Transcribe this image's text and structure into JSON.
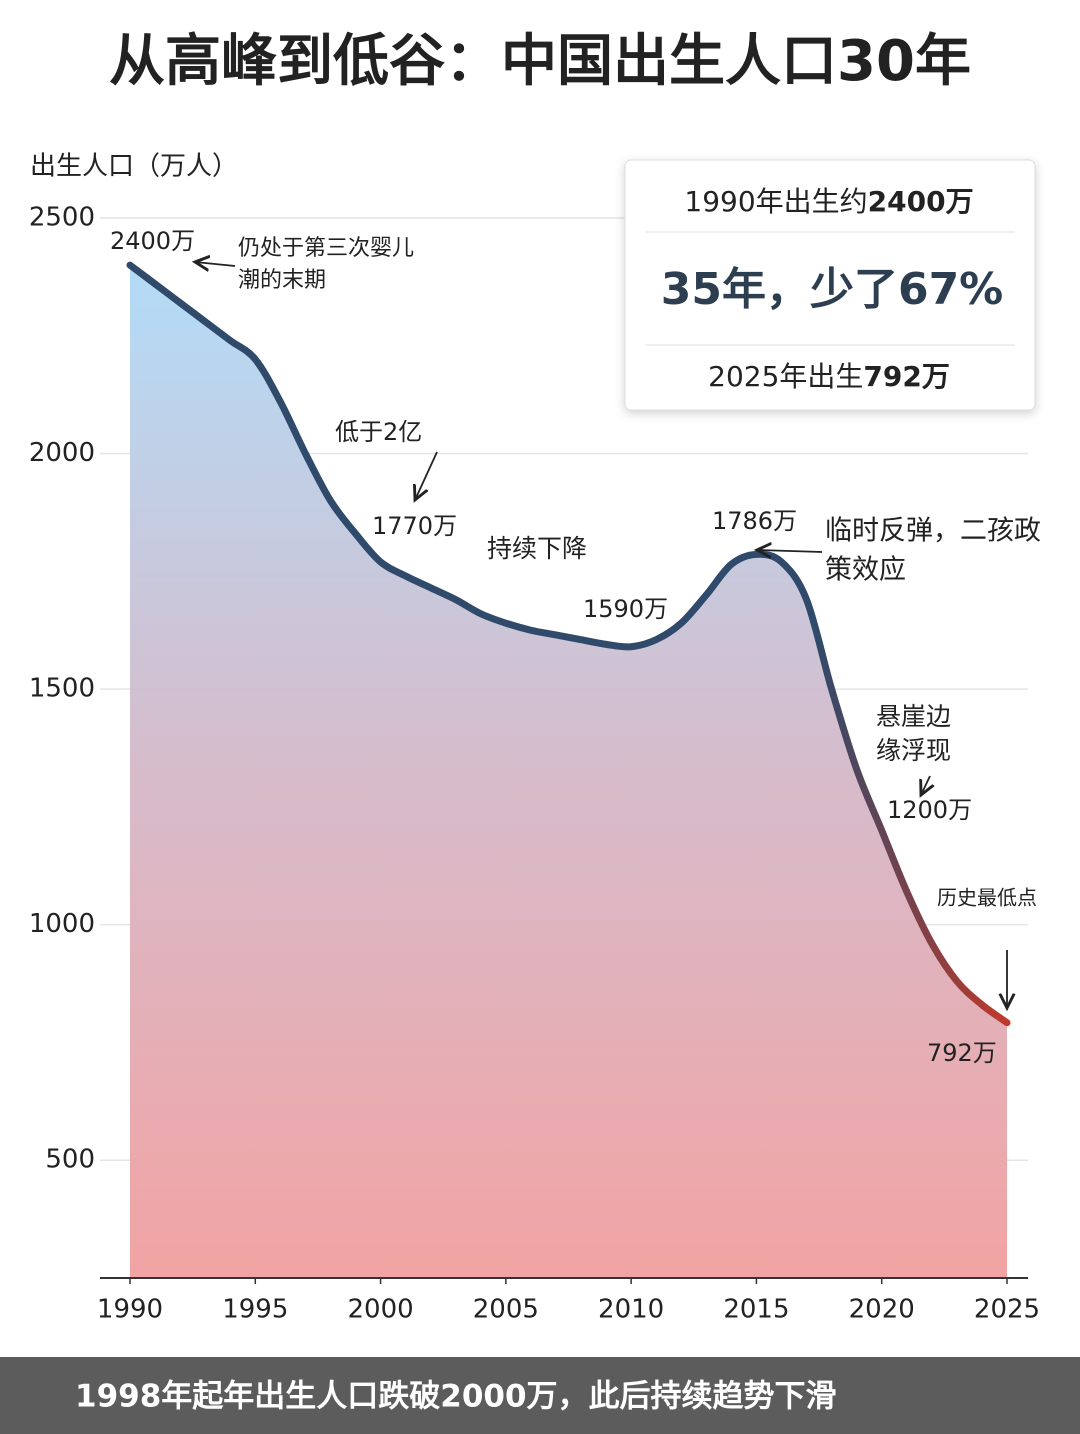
{
  "chart_data": {
    "type": "area",
    "title": "从高峰到低谷：中国出生人口30年",
    "y_label": "出生人口（万人）",
    "x": [
      1990,
      1991,
      1992,
      1993,
      1994,
      1995,
      1996,
      1997,
      1998,
      1999,
      2000,
      2001,
      2002,
      2003,
      2004,
      2005,
      2006,
      2007,
      2008,
      2009,
      2010,
      2011,
      2012,
      2013,
      2014,
      2015,
      2016,
      2017,
      2018,
      2019,
      2020,
      2021,
      2022,
      2023,
      2024,
      2025
    ],
    "series": [
      {
        "name": "出生人口",
        "color": "#2f4a6b",
        "end_color": "#c0392b",
        "values": [
          2400,
          2360,
          2320,
          2280,
          2240,
          2200,
          2110,
          2000,
          1900,
          1830,
          1770,
          1740,
          1715,
          1690,
          1660,
          1640,
          1625,
          1615,
          1605,
          1595,
          1590,
          1605,
          1640,
          1700,
          1765,
          1786,
          1770,
          1690,
          1500,
          1330,
          1200,
          1070,
          960,
          880,
          830,
          792
        ]
      }
    ],
    "xlim": [
      1990,
      2025
    ],
    "xticks": [
      1990,
      1995,
      2000,
      2005,
      2010,
      2015,
      2020,
      2025
    ],
    "ylim": [
      250,
      2500
    ],
    "yticks": [
      500,
      1000,
      1500,
      2000,
      2500
    ],
    "grid": true,
    "annotations": [
      {
        "lines": [
          "2400万"
        ]
      },
      {
        "lines": [
          "仍处于第三次婴儿",
          "潮的末期"
        ]
      },
      {
        "lines": [
          "低于2亿"
        ]
      },
      {
        "lines": [
          "1770万"
        ]
      },
      {
        "lines": [
          "持续下降"
        ]
      },
      {
        "lines": [
          "1590万"
        ]
      },
      {
        "lines": [
          "1786万"
        ]
      },
      {
        "lines": [
          "临时反弹，二孩政",
          "策效应"
        ]
      },
      {
        "lines": [
          "悬崖边",
          "缘浮现"
        ]
      },
      {
        "lines": [
          "1200万"
        ]
      },
      {
        "lines": [
          "历史最低点"
        ]
      },
      {
        "lines": [
          "792万"
        ]
      }
    ],
    "info_box": {
      "line1": {
        "text": "1990年出生约",
        "bold": "2400万"
      },
      "headline": "35年，少了67%",
      "line3": {
        "text": "2025年出生",
        "bold": "792万"
      }
    },
    "footer": "1998年起年出生人口跌破2000万，此后持续趋势下滑"
  }
}
